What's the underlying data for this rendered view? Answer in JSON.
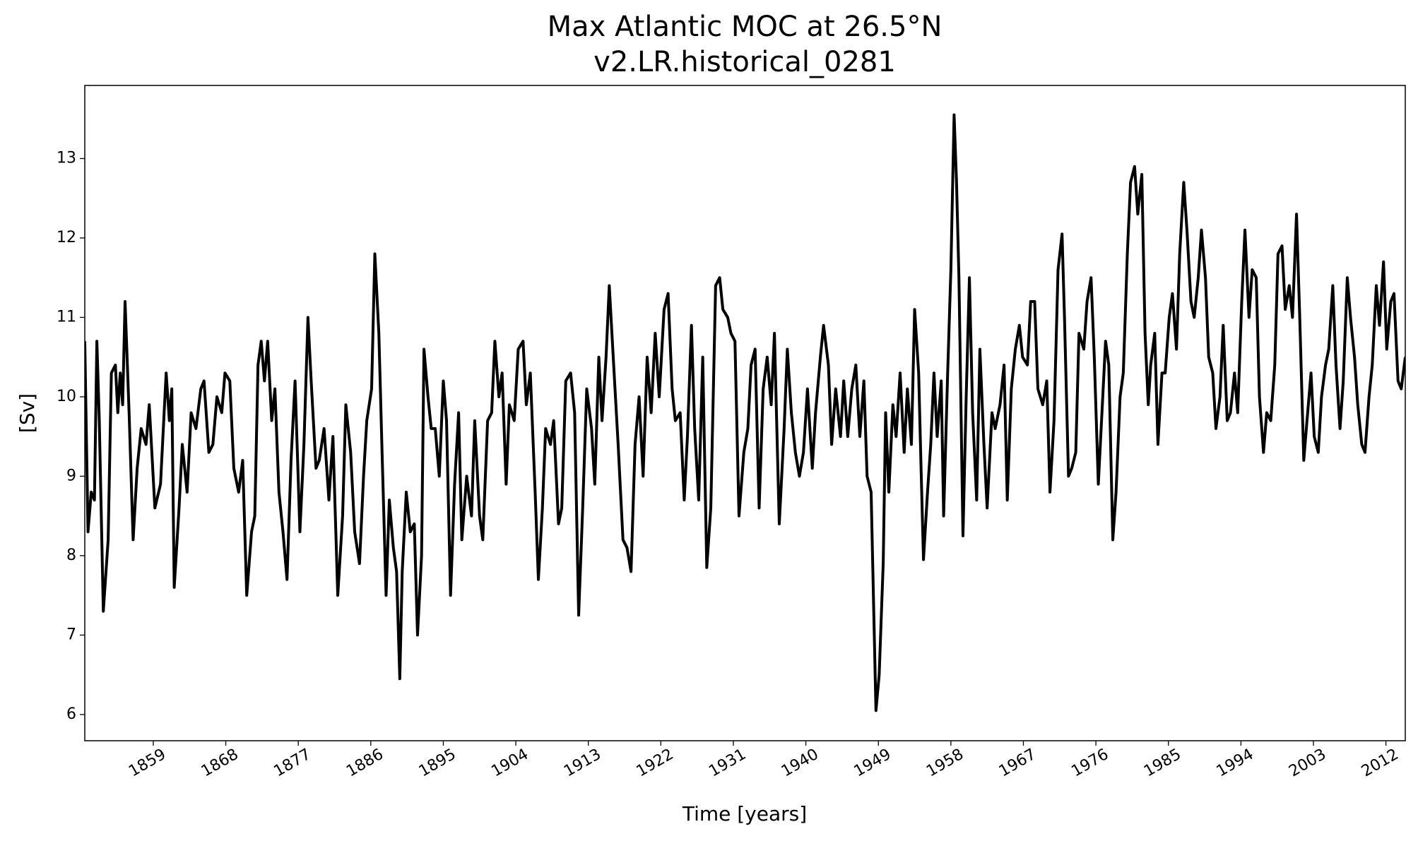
{
  "chart_data": {
    "type": "line",
    "title": "Max Atlantic MOC at 26.5°N",
    "subtitle": "v2.LR.historical_0281",
    "x_label": "Time [years]",
    "y_label": "[Sv]",
    "color": "#000000",
    "xlim": [
      1850.5,
      2014.4
    ],
    "ylim": [
      5.67,
      13.92
    ],
    "xticks": [
      1859,
      1868,
      1877,
      1886,
      1895,
      1904,
      1913,
      1922,
      1931,
      1940,
      1949,
      1958,
      1967,
      1976,
      1985,
      1994,
      2003,
      2012
    ],
    "yticks": [
      6,
      7,
      8,
      9,
      10,
      11,
      12,
      13
    ],
    "x": [
      1850.5,
      1850.9,
      1851.3,
      1851.7,
      1852.0,
      1852.3,
      1852.8,
      1853.4,
      1853.8,
      1854.3,
      1854.6,
      1854.9,
      1855.2,
      1855.5,
      1856.0,
      1856.5,
      1857.0,
      1857.5,
      1858.1,
      1858.5,
      1859.2,
      1859.9,
      1860.6,
      1861.0,
      1861.3,
      1861.6,
      1862.2,
      1862.6,
      1863.2,
      1863.7,
      1864.3,
      1864.9,
      1865.3,
      1865.9,
      1866.4,
      1866.9,
      1867.5,
      1867.9,
      1868.5,
      1869.0,
      1869.6,
      1870.1,
      1870.6,
      1871.2,
      1871.6,
      1872.0,
      1872.4,
      1872.8,
      1873.2,
      1873.7,
      1874.1,
      1874.6,
      1875.1,
      1875.6,
      1876.1,
      1876.6,
      1877.2,
      1877.7,
      1878.2,
      1878.6,
      1879.2,
      1879.6,
      1880.2,
      1880.8,
      1881.3,
      1881.9,
      1882.5,
      1882.9,
      1883.5,
      1884.0,
      1884.6,
      1885.1,
      1885.5,
      1886.1,
      1886.5,
      1887.0,
      1887.4,
      1887.9,
      1888.3,
      1888.8,
      1889.2,
      1889.6,
      1889.9,
      1890.4,
      1890.9,
      1891.4,
      1891.8,
      1892.3,
      1892.6,
      1893.1,
      1893.5,
      1894.0,
      1894.5,
      1895.0,
      1895.4,
      1895.9,
      1896.4,
      1896.9,
      1897.3,
      1897.9,
      1898.5,
      1898.9,
      1899.5,
      1899.9,
      1900.5,
      1901.0,
      1901.4,
      1901.9,
      1902.3,
      1902.8,
      1903.2,
      1903.8,
      1904.3,
      1904.9,
      1905.3,
      1905.8,
      1906.4,
      1906.8,
      1907.3,
      1907.7,
      1908.3,
      1908.7,
      1909.3,
      1909.7,
      1910.2,
      1910.8,
      1911.3,
      1911.8,
      1912.3,
      1912.8,
      1913.4,
      1913.8,
      1914.3,
      1914.7,
      1915.2,
      1915.6,
      1916.2,
      1916.7,
      1917.3,
      1917.8,
      1918.3,
      1918.8,
      1919.3,
      1919.8,
      1920.3,
      1920.8,
      1921.3,
      1921.8,
      1922.4,
      1922.9,
      1923.4,
      1923.8,
      1924.4,
      1924.9,
      1925.3,
      1925.8,
      1926.2,
      1926.7,
      1927.2,
      1927.7,
      1928.2,
      1928.8,
      1929.3,
      1929.7,
      1930.3,
      1930.7,
      1931.2,
      1931.7,
      1932.3,
      1932.8,
      1933.2,
      1933.7,
      1934.2,
      1934.7,
      1935.2,
      1935.7,
      1936.1,
      1936.7,
      1937.3,
      1937.7,
      1938.2,
      1938.7,
      1939.2,
      1939.7,
      1940.2,
      1940.8,
      1941.2,
      1941.8,
      1942.2,
      1942.8,
      1943.2,
      1943.7,
      1944.3,
      1944.7,
      1945.2,
      1945.7,
      1946.2,
      1946.7,
      1947.2,
      1947.6,
      1948.1,
      1948.7,
      1949.1,
      1949.6,
      1949.9,
      1950.3,
      1950.8,
      1951.2,
      1951.7,
      1952.2,
      1952.6,
      1953.1,
      1953.5,
      1954.0,
      1954.3,
      1954.6,
      1955.1,
      1955.5,
      1955.9,
      1956.3,
      1956.8,
      1957.1,
      1957.6,
      1958.0,
      1958.4,
      1958.7,
      1959.0,
      1959.5,
      1959.9,
      1960.3,
      1960.7,
      1961.2,
      1961.6,
      1962.1,
      1962.5,
      1963.1,
      1963.5,
      1964.1,
      1964.6,
      1965.0,
      1965.5,
      1966.0,
      1966.5,
      1966.9,
      1967.5,
      1967.9,
      1968.4,
      1968.8,
      1969.4,
      1969.9,
      1970.3,
      1970.8,
      1971.3,
      1971.8,
      1972.1,
      1972.6,
      1973.0,
      1973.5,
      1973.9,
      1974.5,
      1974.9,
      1975.4,
      1975.8,
      1976.3,
      1976.7,
      1977.2,
      1977.6,
      1978.1,
      1978.5,
      1979.0,
      1979.4,
      1979.9,
      1980.3,
      1980.8,
      1981.2,
      1981.7,
      1982.1,
      1982.5,
      1982.8,
      1983.3,
      1983.7,
      1984.2,
      1984.6,
      1985.1,
      1985.5,
      1986.0,
      1986.4,
      1986.9,
      1987.3,
      1987.8,
      1988.2,
      1988.7,
      1989.1,
      1989.6,
      1990.0,
      1990.5,
      1990.9,
      1991.4,
      1991.8,
      1992.3,
      1992.7,
      1993.2,
      1993.6,
      1994.1,
      1994.5,
      1995.0,
      1995.4,
      1995.9,
      1996.3,
      1996.8,
      1997.2,
      1997.7,
      1998.2,
      1998.6,
      1999.1,
      1999.5,
      2000.0,
      2000.4,
      2000.9,
      2001.3,
      2001.8,
      2002.2,
      2002.7,
      2003.1,
      2003.6,
      2004.0,
      2004.5,
      2004.9,
      2005.4,
      2005.8,
      2006.3,
      2006.7,
      2007.2,
      2007.6,
      2008.1,
      2008.5,
      2009.0,
      2009.4,
      2009.9,
      2010.3,
      2010.8,
      2011.2,
      2011.7,
      2012.1,
      2012.6,
      2013.0,
      2013.5,
      2013.9,
      2014.4
    ],
    "values": [
      10.7,
      8.3,
      8.8,
      8.7,
      10.7,
      9.7,
      7.3,
      8.2,
      10.3,
      10.4,
      9.8,
      10.3,
      9.9,
      11.2,
      9.8,
      8.2,
      9.1,
      9.6,
      9.4,
      9.9,
      8.6,
      8.9,
      10.3,
      9.7,
      10.1,
      7.6,
      8.6,
      9.4,
      8.8,
      9.8,
      9.6,
      10.1,
      10.2,
      9.3,
      9.4,
      10.0,
      9.8,
      10.3,
      10.2,
      9.1,
      8.8,
      9.2,
      7.5,
      8.3,
      8.5,
      10.4,
      10.7,
      10.2,
      10.7,
      9.7,
      10.1,
      8.8,
      8.3,
      7.7,
      9.2,
      10.2,
      8.3,
      9.4,
      11.0,
      10.2,
      9.1,
      9.2,
      9.6,
      8.7,
      9.5,
      7.5,
      8.5,
      9.9,
      9.3,
      8.3,
      7.9,
      9.0,
      9.7,
      10.1,
      11.8,
      10.8,
      9.3,
      7.5,
      8.7,
      8.1,
      7.8,
      6.45,
      7.8,
      8.8,
      8.3,
      8.4,
      7.0,
      8.0,
      10.6,
      10.0,
      9.6,
      9.6,
      9.0,
      10.2,
      9.7,
      7.5,
      8.9,
      9.8,
      8.2,
      9.0,
      8.5,
      9.7,
      8.5,
      8.2,
      9.7,
      9.8,
      10.7,
      10.0,
      10.3,
      8.9,
      9.9,
      9.7,
      10.6,
      10.7,
      9.9,
      10.3,
      8.8,
      7.7,
      8.6,
      9.6,
      9.4,
      9.7,
      8.4,
      8.6,
      10.2,
      10.3,
      9.8,
      7.25,
      8.6,
      10.1,
      9.6,
      8.9,
      10.5,
      9.7,
      10.5,
      11.4,
      10.3,
      9.4,
      8.2,
      8.1,
      7.8,
      9.4,
      10.0,
      9.0,
      10.5,
      9.8,
      10.8,
      10.0,
      11.1,
      11.3,
      10.1,
      9.7,
      9.8,
      8.7,
      9.5,
      10.9,
      9.6,
      8.7,
      10.5,
      7.85,
      8.6,
      11.4,
      11.5,
      11.1,
      11.0,
      10.8,
      10.7,
      8.5,
      9.3,
      9.6,
      10.4,
      10.6,
      8.6,
      10.1,
      10.5,
      9.9,
      10.8,
      8.4,
      9.6,
      10.6,
      9.8,
      9.3,
      9.0,
      9.3,
      10.1,
      9.1,
      9.8,
      10.5,
      10.9,
      10.4,
      9.4,
      10.1,
      9.5,
      10.2,
      9.5,
      10.1,
      10.4,
      9.5,
      10.2,
      9.0,
      8.8,
      6.05,
      6.5,
      7.9,
      9.8,
      8.8,
      9.9,
      9.5,
      10.3,
      9.3,
      10.1,
      9.4,
      11.1,
      10.3,
      9.1,
      7.95,
      8.8,
      9.4,
      10.3,
      9.5,
      10.2,
      8.5,
      10.3,
      11.6,
      13.55,
      12.7,
      11.5,
      8.25,
      10.0,
      11.5,
      9.8,
      8.7,
      10.6,
      9.4,
      8.6,
      9.8,
      9.6,
      9.9,
      10.4,
      8.7,
      10.1,
      10.6,
      10.9,
      10.5,
      10.4,
      11.2,
      11.2,
      10.1,
      9.9,
      10.2,
      8.8,
      9.7,
      11.6,
      12.05,
      11.0,
      9.0,
      9.1,
      9.3,
      10.8,
      10.6,
      11.2,
      11.5,
      10.5,
      8.9,
      9.7,
      10.7,
      10.4,
      8.2,
      8.8,
      10.0,
      10.3,
      11.8,
      12.7,
      12.9,
      12.3,
      12.8,
      10.8,
      9.9,
      10.4,
      10.8,
      9.4,
      10.3,
      10.3,
      11.0,
      11.3,
      10.6,
      11.8,
      12.7,
      12.1,
      11.2,
      11.0,
      11.5,
      12.1,
      11.5,
      10.5,
      10.3,
      9.6,
      10.0,
      10.9,
      9.7,
      9.8,
      10.3,
      9.8,
      11.2,
      12.1,
      11.0,
      11.6,
      11.5,
      10.0,
      9.3,
      9.8,
      9.7,
      10.4,
      11.8,
      11.9,
      11.1,
      11.4,
      11.0,
      12.3,
      11.0,
      9.2,
      9.7,
      10.3,
      9.5,
      9.3,
      10.0,
      10.4,
      10.6,
      11.4,
      10.4,
      9.6,
      10.2,
      11.5,
      11.0,
      10.5,
      9.9,
      9.4,
      9.3,
      10.0,
      10.4,
      11.4,
      10.9,
      11.7,
      10.6,
      11.2,
      11.3,
      10.2,
      10.1,
      10.5
    ]
  }
}
